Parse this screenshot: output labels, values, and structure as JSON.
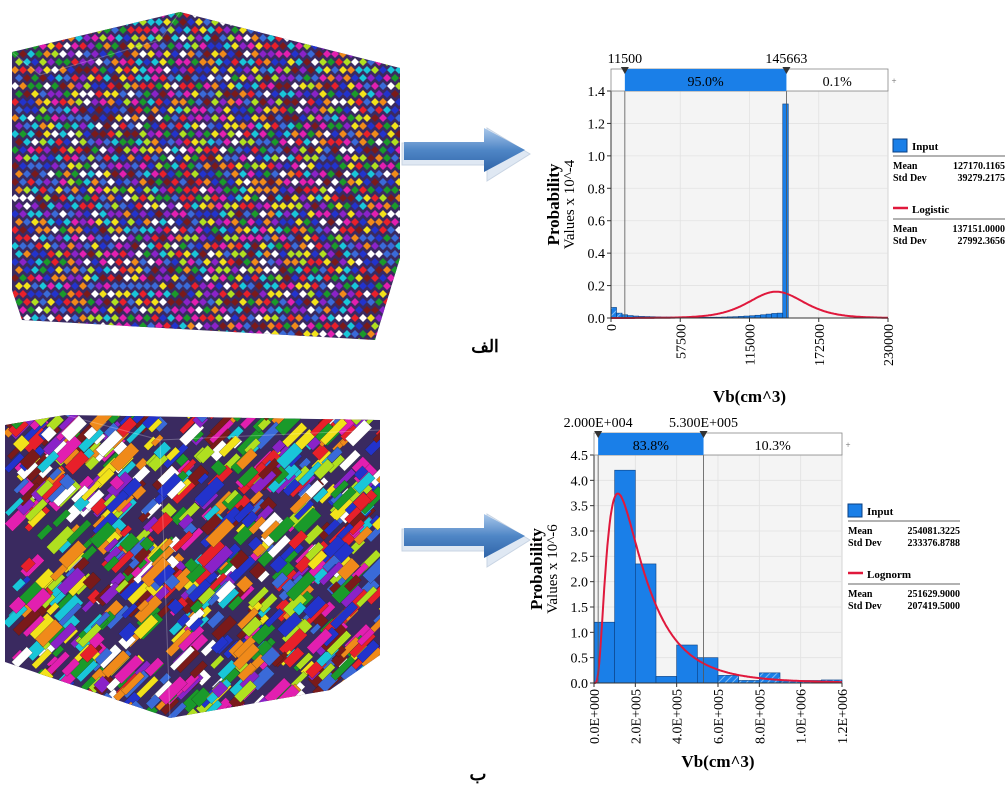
{
  "labels": {
    "top_figure": "الف",
    "bottom_figure": "ب"
  },
  "colors": {
    "histogram_bar": "#1a7fe8",
    "fit_curve": "#e0183c",
    "range_bar": "#1a7fe8",
    "plot_background": "#f4f4f4"
  },
  "chart_data": [
    {
      "type": "bar",
      "ylabel": "Probability",
      "ylabel_scale": "Values x 10^-4",
      "xlabel": "Vb(cm^3)",
      "xlim": [
        0,
        230000
      ],
      "ylim": [
        0,
        1.4
      ],
      "x_ticks": [
        "0",
        "57500",
        "115000",
        "172500",
        "230000"
      ],
      "y_ticks": [
        "0.0",
        "0.2",
        "0.4",
        "0.6",
        "0.8",
        "1.0",
        "1.2",
        "1.4"
      ],
      "range_markers": {
        "left_label": "11500",
        "right_label": "145663",
        "left_value": 11500,
        "right_value": 145663
      },
      "range_percentages": {
        "middle": "95.0%",
        "right": "0.1%"
      },
      "bins": [
        {
          "x0": 0,
          "x1": 4600,
          "value": 0.065
        },
        {
          "x0": 4600,
          "x1": 9200,
          "value": 0.03
        },
        {
          "x0": 9200,
          "x1": 13800,
          "value": 0.02
        },
        {
          "x0": 13800,
          "x1": 18400,
          "value": 0.015
        },
        {
          "x0": 18400,
          "x1": 23000,
          "value": 0.012
        },
        {
          "x0": 23000,
          "x1": 27600,
          "value": 0.01
        },
        {
          "x0": 27600,
          "x1": 32200,
          "value": 0.009
        },
        {
          "x0": 32200,
          "x1": 36800,
          "value": 0.008
        },
        {
          "x0": 36800,
          "x1": 41400,
          "value": 0.007
        },
        {
          "x0": 41400,
          "x1": 46000,
          "value": 0.006
        },
        {
          "x0": 46000,
          "x1": 50600,
          "value": 0.006
        },
        {
          "x0": 50600,
          "x1": 55200,
          "value": 0.005
        },
        {
          "x0": 55200,
          "x1": 59800,
          "value": 0.005
        },
        {
          "x0": 59800,
          "x1": 64400,
          "value": 0.004
        },
        {
          "x0": 64400,
          "x1": 69000,
          "value": 0.004
        },
        {
          "x0": 69000,
          "x1": 73600,
          "value": 0.004
        },
        {
          "x0": 73600,
          "x1": 78200,
          "value": 0.004
        },
        {
          "x0": 78200,
          "x1": 82800,
          "value": 0.004
        },
        {
          "x0": 82800,
          "x1": 87400,
          "value": 0.005
        },
        {
          "x0": 87400,
          "x1": 92000,
          "value": 0.005
        },
        {
          "x0": 92000,
          "x1": 96600,
          "value": 0.006
        },
        {
          "x0": 96600,
          "x1": 101200,
          "value": 0.007
        },
        {
          "x0": 101200,
          "x1": 105800,
          "value": 0.008
        },
        {
          "x0": 105800,
          "x1": 110400,
          "value": 0.01
        },
        {
          "x0": 110400,
          "x1": 115000,
          "value": 0.012
        },
        {
          "x0": 115000,
          "x1": 119600,
          "value": 0.014
        },
        {
          "x0": 119600,
          "x1": 124200,
          "value": 0.017
        },
        {
          "x0": 124200,
          "x1": 128800,
          "value": 0.02
        },
        {
          "x0": 128800,
          "x1": 133400,
          "value": 0.024
        },
        {
          "x0": 133400,
          "x1": 138000,
          "value": 0.028
        },
        {
          "x0": 138000,
          "x1": 142600,
          "value": 0.03
        },
        {
          "x0": 142600,
          "x1": 147200,
          "value": 1.32
        }
      ],
      "fit": {
        "name": "Logistic",
        "kind": "logistic",
        "mu": 137151,
        "s": 15400,
        "scale_x1e4": 0.745
      },
      "legend": [
        {
          "name": "Input",
          "swatch": "box",
          "mean_label": "Mean",
          "mean": "127170.1165",
          "std_label": "Std Dev",
          "std": "39279.2175"
        },
        {
          "name": "Logistic",
          "swatch": "line",
          "mean_label": "Mean",
          "mean": "137151.0000",
          "std_label": "Std Dev",
          "std": "27992.3656"
        }
      ]
    },
    {
      "type": "bar",
      "ylabel": "Probability",
      "ylabel_scale": "Values x 10^-6",
      "xlabel": "Vb(cm^3)",
      "xlim": [
        0,
        1200000
      ],
      "ylim": [
        0,
        4.5
      ],
      "x_ticks": [
        "0.0E+000",
        "2.0E+005",
        "4.0E+005",
        "6.0E+005",
        "8.0E+005",
        "1.0E+006",
        "1.2E+006"
      ],
      "y_ticks": [
        "0.0",
        "0.5",
        "1.0",
        "1.5",
        "2.0",
        "2.5",
        "3.0",
        "3.5",
        "4.0",
        "4.5"
      ],
      "range_markers": {
        "left_label": "2.000E+004",
        "right_label": "5.300E+005",
        "left_value": 20000,
        "right_value": 530000
      },
      "range_percentages": {
        "middle": "83.8%",
        "right": "10.3%"
      },
      "bins": [
        {
          "x0": 0,
          "x1": 100000,
          "value": 1.2
        },
        {
          "x0": 100000,
          "x1": 200000,
          "value": 4.2
        },
        {
          "x0": 200000,
          "x1": 300000,
          "value": 2.35
        },
        {
          "x0": 300000,
          "x1": 400000,
          "value": 0.13
        },
        {
          "x0": 400000,
          "x1": 500000,
          "value": 0.75
        },
        {
          "x0": 500000,
          "x1": 600000,
          "value": 0.5
        },
        {
          "x0": 600000,
          "x1": 700000,
          "value": 0.15
        },
        {
          "x0": 700000,
          "x1": 800000,
          "value": 0.05
        },
        {
          "x0": 800000,
          "x1": 900000,
          "value": 0.2
        },
        {
          "x0": 900000,
          "x1": 1000000,
          "value": 0.04
        },
        {
          "x0": 1000000,
          "x1": 1100000,
          "value": 0.05
        },
        {
          "x0": 1100000,
          "x1": 1200000,
          "value": 0.06
        }
      ],
      "fit": {
        "name": "Lognorm",
        "kind": "lognormal",
        "mu": 12.168,
        "sigma": 0.7156
      },
      "legend": [
        {
          "name": "Input",
          "swatch": "box",
          "mean_label": "Mean",
          "mean": "254081.3225",
          "std_label": "Std Dev",
          "std": "233376.8788"
        },
        {
          "name": "Lognorm",
          "swatch": "line",
          "mean_label": "Mean",
          "mean": "251629.9000",
          "std_label": "Std Dev",
          "std": "207419.5000"
        }
      ]
    }
  ]
}
